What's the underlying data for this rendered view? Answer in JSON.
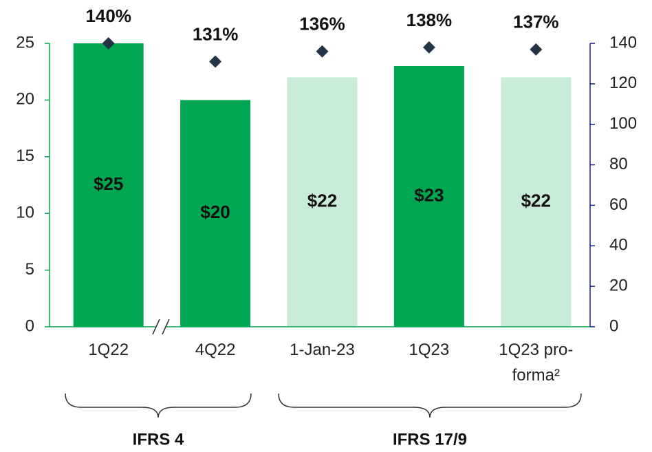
{
  "chart_data": {
    "type": "bar",
    "categories": [
      "1Q22",
      "4Q22",
      "1-Jan-23",
      "1Q23",
      "1Q23 pro-forma²"
    ],
    "series": [
      {
        "values": [
          25,
          20,
          22,
          23,
          22
        ],
        "value_labels": [
          "$25",
          "$20",
          "$22",
          "$23",
          "$22"
        ],
        "colors": [
          "#00a651",
          "#00a651",
          "#c9ecd9",
          "#00a651",
          "#c9ecd9"
        ]
      },
      {
        "axis": "y2",
        "marker": "diamond",
        "color": "#243447",
        "values": [
          140,
          131,
          136,
          138,
          137
        ],
        "value_labels": [
          "140%",
          "131%",
          "136%",
          "138%",
          "137%"
        ]
      }
    ],
    "ylim": [
      0,
      25
    ],
    "yticks": [
      0,
      5,
      10,
      15,
      20,
      25
    ],
    "y2lim": [
      0,
      140
    ],
    "y2ticks": [
      0,
      20,
      40,
      60,
      80,
      100,
      120,
      140
    ],
    "axis_color": "#00a651",
    "y2_axis_color": "#1a1aa0",
    "groups": [
      "IFRS 4",
      "IFRS 17/9"
    ]
  }
}
